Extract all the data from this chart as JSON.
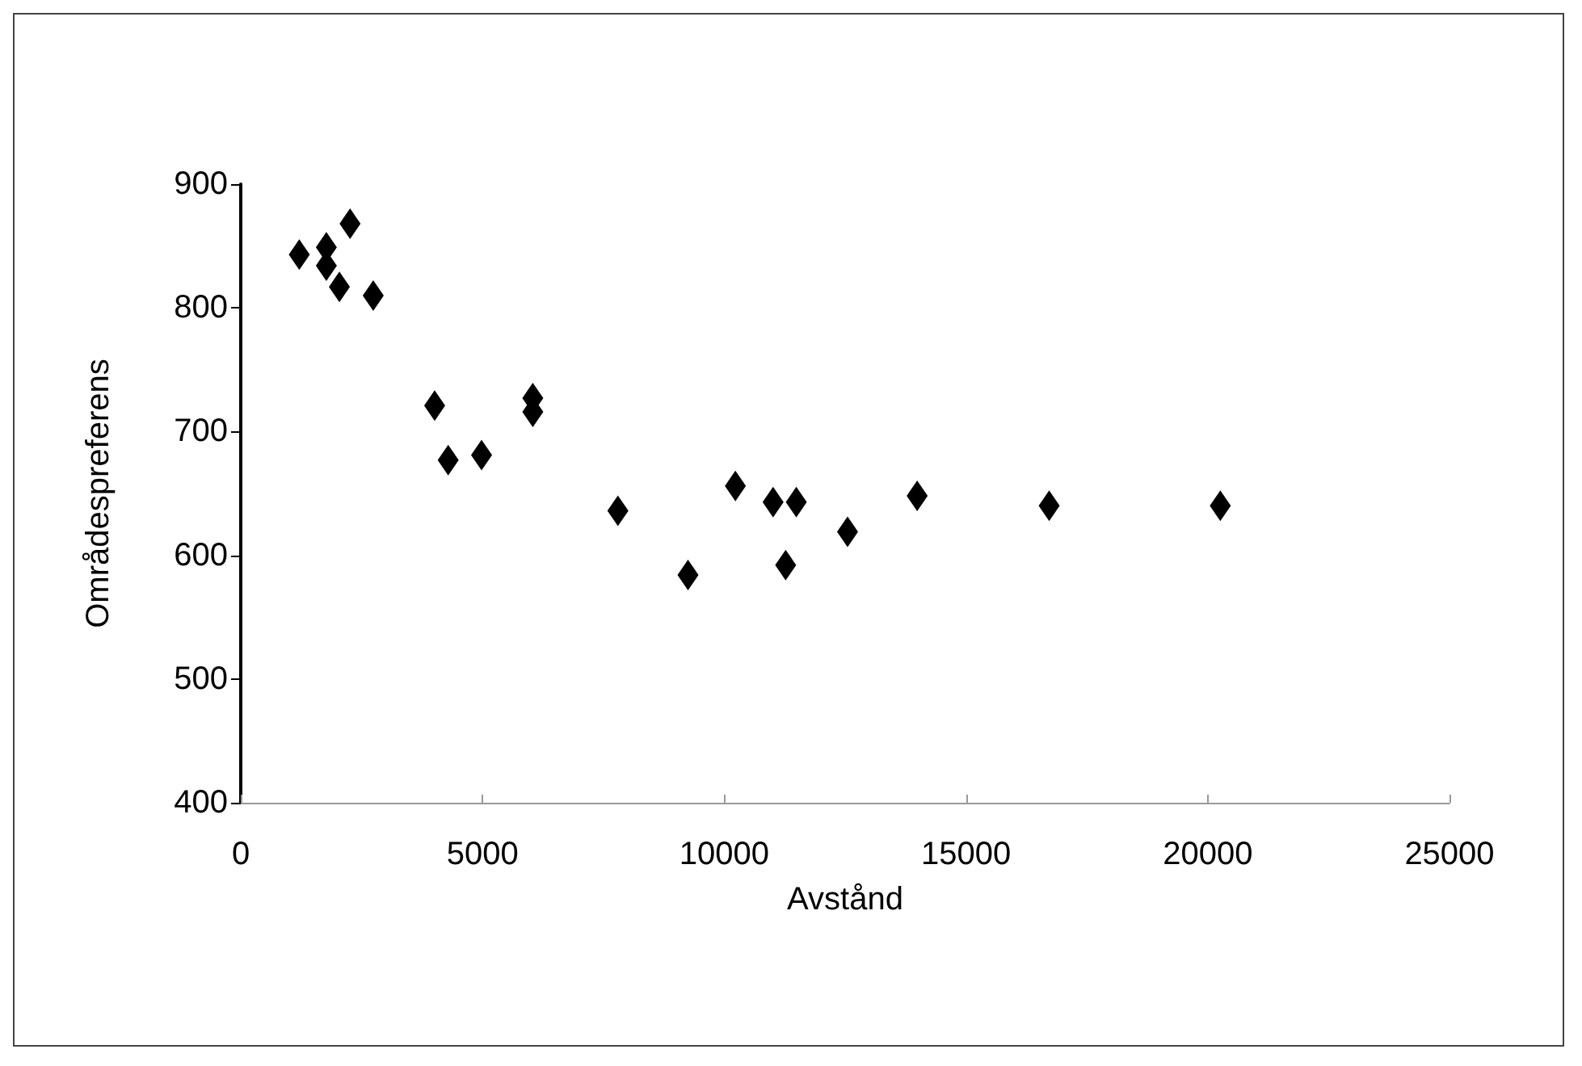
{
  "chart_data": {
    "type": "scatter",
    "xlabel": "Avstånd",
    "ylabel": "Områdespreferens",
    "x": [
      1210,
      1770,
      1770,
      2260,
      2040,
      2740,
      4010,
      4290,
      4980,
      6040,
      6040,
      7800,
      9250,
      10230,
      11010,
      11270,
      11490,
      12550,
      13990,
      16720,
      20260
    ],
    "series": [
      {
        "color": "#000000",
        "values": [
          843,
          849,
          834,
          868,
          817,
          810,
          721,
          677,
          681,
          727,
          716,
          636,
          584,
          656,
          643,
          592,
          643,
          619,
          648,
          640,
          640
        ]
      }
    ],
    "xlim": [
      0,
      25000
    ],
    "xticks": [
      0,
      5000,
      10000,
      15000,
      20000,
      25000
    ],
    "ylim": [
      400,
      900
    ],
    "yticks": [
      400,
      500,
      600,
      700,
      800,
      900
    ],
    "marker": "diamond"
  }
}
